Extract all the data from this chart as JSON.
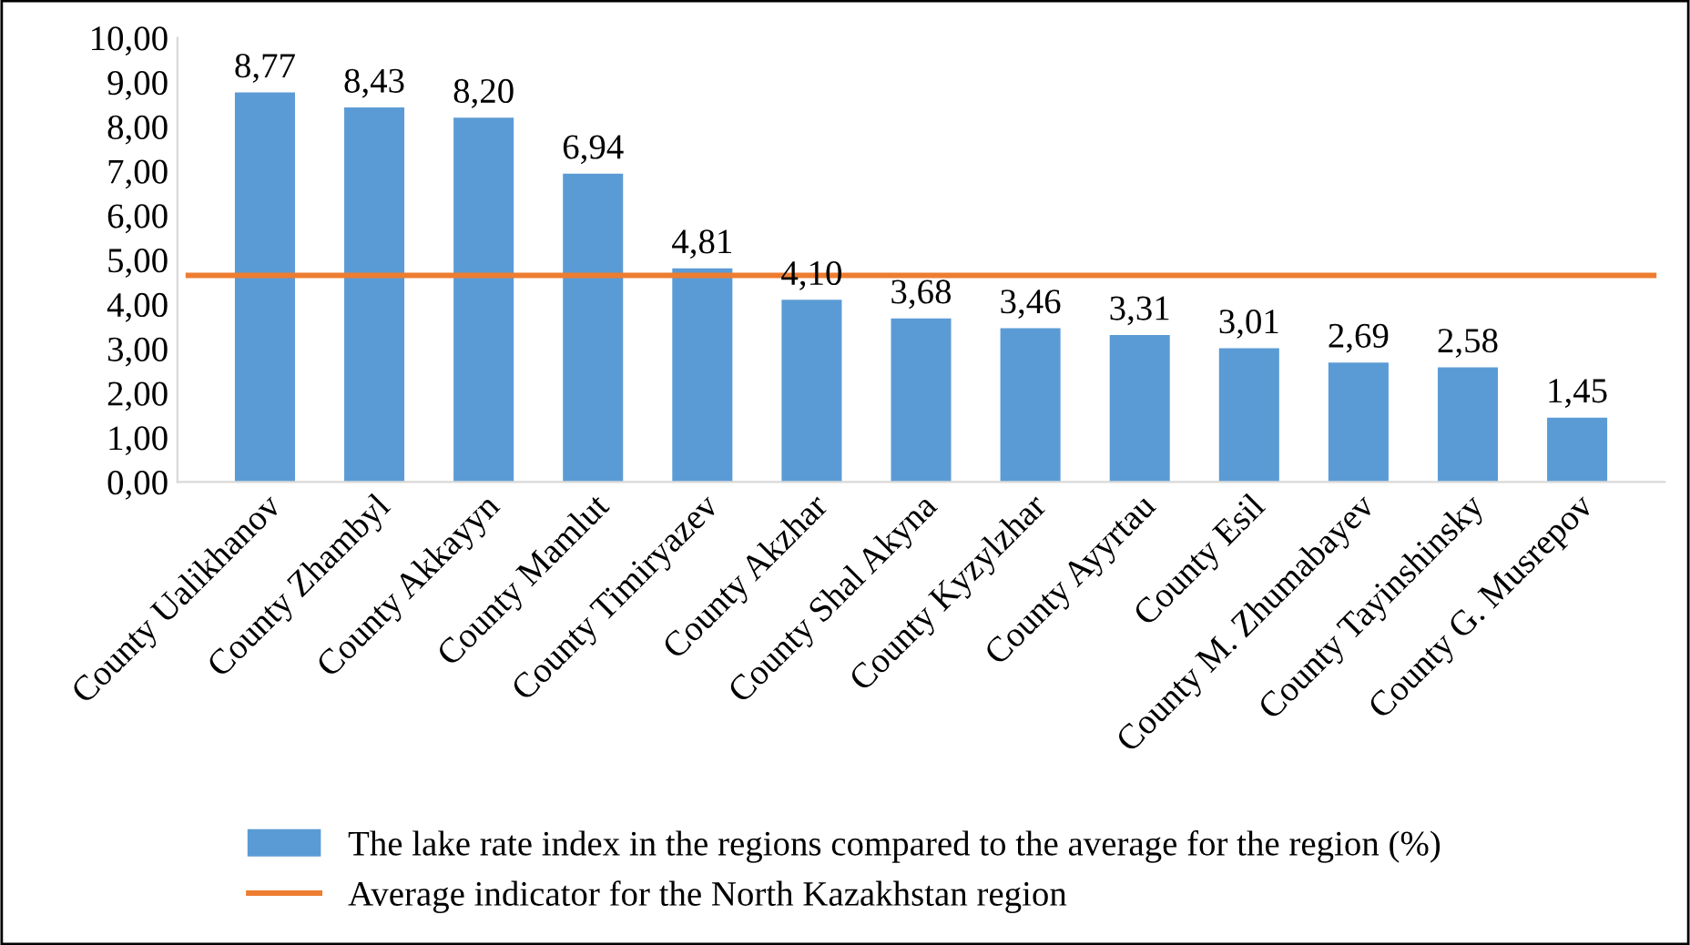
{
  "chart_data": {
    "type": "bar",
    "categories": [
      "County Ualikhanov",
      "County Zhambyl",
      "County Akkayyn",
      "County Mamlut",
      "County Timiryazev",
      "County Akzhar",
      "County Shal Akyna",
      "County Kyzylzhar",
      "County Ayyrtau",
      "County Esil",
      "County M. Zhumabayev",
      "County Tayinshinsky",
      "County G. Musrepov"
    ],
    "series": [
      {
        "name": "The lake rate index in the regions compared to the average for the region (%)",
        "color": "#5b9bd5",
        "values": [
          8.77,
          8.43,
          8.2,
          6.94,
          4.81,
          4.1,
          3.68,
          3.46,
          3.31,
          3.01,
          2.69,
          2.58,
          1.45
        ],
        "value_labels": [
          "8,77",
          "8,43",
          "8,20",
          "6,94",
          "4,81",
          "4,10",
          "3,68",
          "3,46",
          "3,31",
          "3,01",
          "2,69",
          "2,58",
          "1,45"
        ]
      }
    ],
    "ref_lines": [
      {
        "axis": "y",
        "value": 4.65,
        "label": "Average indicator for the North Kazakhstan region",
        "color": "#ed7d31",
        "line_style": "solid"
      }
    ],
    "ylim": [
      0,
      10
    ],
    "yticks": [
      {
        "value": 0,
        "label": "0,00"
      },
      {
        "value": 1,
        "label": "1,00"
      },
      {
        "value": 2,
        "label": "2,00"
      },
      {
        "value": 3,
        "label": "3,00"
      },
      {
        "value": 4,
        "label": "4,00"
      },
      {
        "value": 5,
        "label": "5,00"
      },
      {
        "value": 6,
        "label": "6,00"
      },
      {
        "value": 7,
        "label": "7,00"
      },
      {
        "value": 8,
        "label": "8,00"
      },
      {
        "value": 9,
        "label": "9,00"
      },
      {
        "value": 10,
        "label": "10,00"
      }
    ],
    "grid": false,
    "legend": "bottom"
  }
}
